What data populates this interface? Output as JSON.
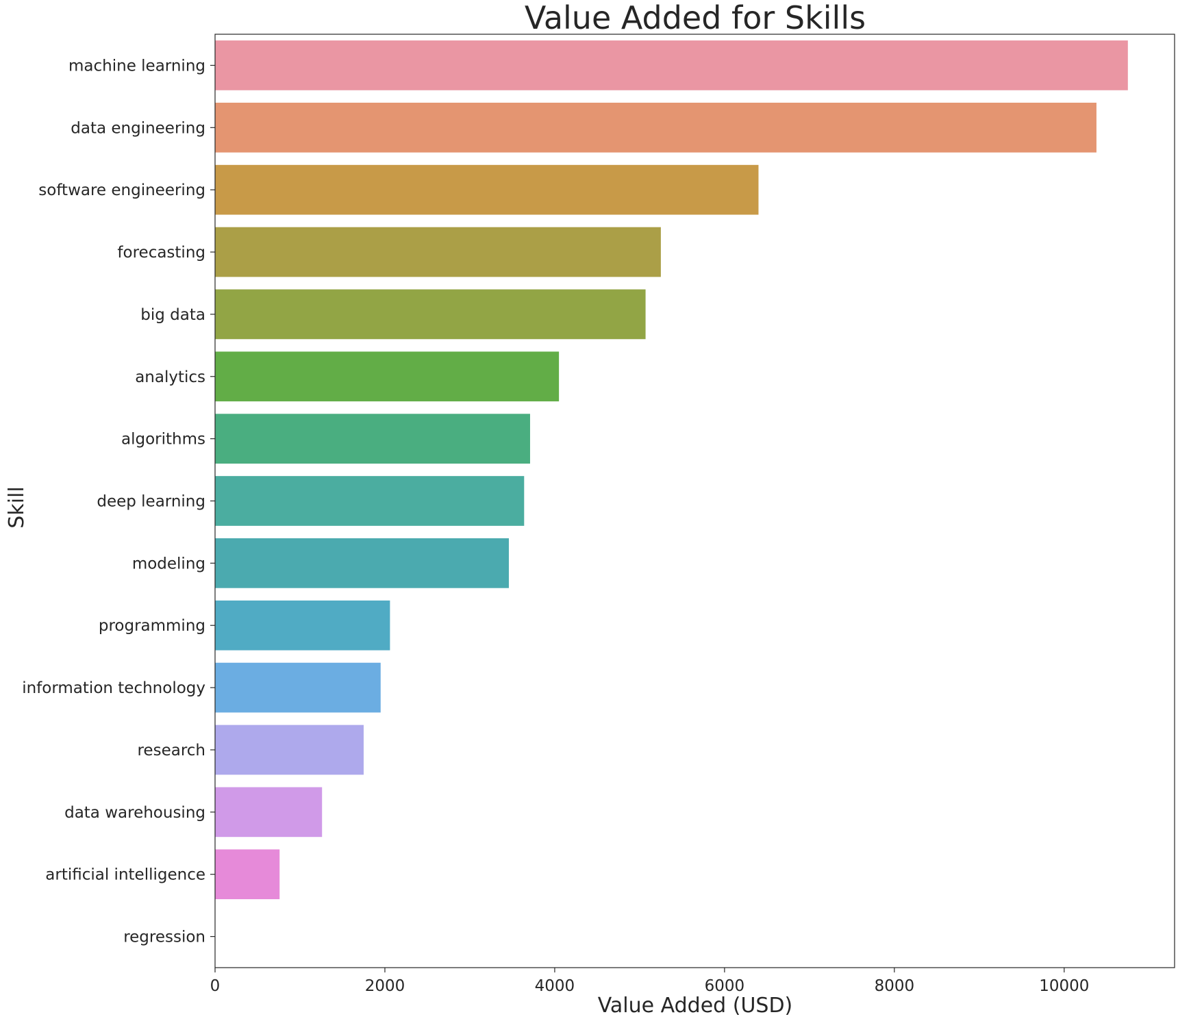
{
  "chart_data": {
    "type": "bar",
    "orientation": "horizontal",
    "title": "Value Added for Skills",
    "xlabel": "Value Added (USD)",
    "ylabel": "Skill",
    "xlim": [
      0,
      11300
    ],
    "xticks": [
      0,
      2000,
      4000,
      6000,
      8000,
      10000
    ],
    "grid": false,
    "legend": "none",
    "categories": [
      "machine learning",
      "data engineering",
      "software engineering",
      "forecasting",
      "big data",
      "analytics",
      "algorithms",
      "deep learning",
      "modeling",
      "programming",
      "information technology",
      "research",
      "data warehousing",
      "artificial intelligence",
      "regression"
    ],
    "values": [
      10750,
      10380,
      6400,
      5250,
      5070,
      4050,
      3710,
      3640,
      3460,
      2060,
      1950,
      1750,
      1260,
      760,
      0
    ],
    "colors": [
      "#ea96a3",
      "#e49571",
      "#c89a48",
      "#ab9f47",
      "#92a545",
      "#62ad47",
      "#4aae80",
      "#4badA0",
      "#4baaaf",
      "#50abc4",
      "#6badE2",
      "#aea9ec",
      "#d09ae8",
      "#e68ad9",
      "#ea88be"
    ]
  }
}
